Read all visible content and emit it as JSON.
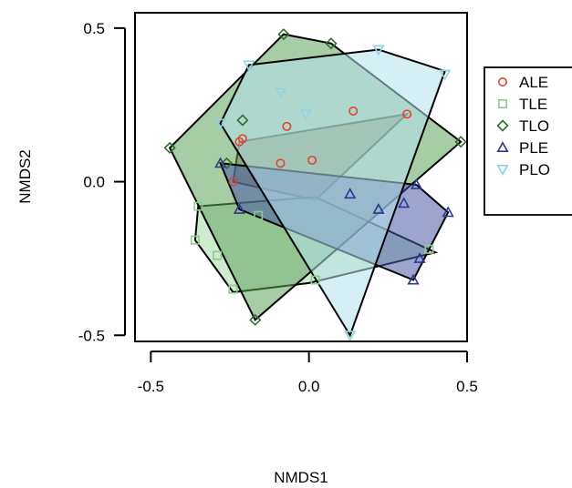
{
  "chart_data": {
    "type": "scatter",
    "title": "",
    "xlabel": "NMDS1",
    "ylabel": "NMDS2",
    "xlim": [
      -0.55,
      0.5
    ],
    "ylim": [
      -0.52,
      0.55
    ],
    "xticks": [
      -0.5,
      0.0,
      0.5
    ],
    "xtick_labels": [
      "-0.5",
      "0.0",
      "0.5"
    ],
    "yticks": [
      -0.5,
      0.0,
      0.5
    ],
    "ytick_labels": [
      "-0.5",
      "0.0",
      "0.5"
    ],
    "grid": false,
    "legend_position": "right",
    "series": [
      {
        "name": "ALE",
        "marker": "circle",
        "color": "#e0442e",
        "fill": "#a05a4a",
        "points": [
          [
            -0.21,
            0.14
          ],
          [
            -0.22,
            0.13
          ],
          [
            -0.07,
            0.18
          ],
          [
            0.14,
            0.23
          ],
          [
            0.31,
            0.22
          ],
          [
            -0.09,
            0.06
          ],
          [
            0.01,
            0.07
          ],
          [
            -0.24,
            0.0
          ]
        ],
        "hull": [
          [
            -0.22,
            0.13
          ],
          [
            0.31,
            0.22
          ],
          [
            0.02,
            -0.06
          ],
          [
            -0.24,
            0.0
          ]
        ]
      },
      {
        "name": "TLE",
        "marker": "square",
        "color": "#8ccc8c",
        "fill": "#a8dba8",
        "points": [
          [
            -0.35,
            -0.08
          ],
          [
            -0.36,
            -0.19
          ],
          [
            -0.29,
            -0.24
          ],
          [
            -0.21,
            -0.19
          ],
          [
            -0.16,
            -0.11
          ],
          [
            -0.06,
            -0.26
          ],
          [
            -0.24,
            -0.35
          ],
          [
            0.02,
            -0.32
          ],
          [
            0.38,
            -0.22
          ]
        ],
        "hull": [
          [
            -0.35,
            -0.08
          ],
          [
            0.02,
            -0.05
          ],
          [
            0.4,
            -0.23
          ],
          [
            0.0,
            -0.33
          ],
          [
            -0.24,
            -0.36
          ],
          [
            -0.36,
            -0.19
          ]
        ]
      },
      {
        "name": "TLO",
        "marker": "diamond",
        "color": "#2e6e2e",
        "fill": "#5fa45f",
        "points": [
          [
            -0.44,
            0.11
          ],
          [
            -0.08,
            0.48
          ],
          [
            0.07,
            0.45
          ],
          [
            0.48,
            0.13
          ],
          [
            -0.21,
            0.2
          ],
          [
            -0.17,
            -0.45
          ],
          [
            -0.26,
            0.06
          ]
        ],
        "hull": [
          [
            -0.44,
            0.11
          ],
          [
            -0.08,
            0.48
          ],
          [
            0.07,
            0.45
          ],
          [
            0.48,
            0.13
          ],
          [
            -0.17,
            -0.45
          ]
        ]
      },
      {
        "name": "PLE",
        "marker": "triangle",
        "color": "#2a3a8c",
        "fill": "#4a5aa8",
        "points": [
          [
            -0.28,
            0.06
          ],
          [
            -0.22,
            -0.09
          ],
          [
            0.13,
            -0.04
          ],
          [
            0.22,
            -0.09
          ],
          [
            0.3,
            -0.07
          ],
          [
            0.34,
            -0.01
          ],
          [
            0.44,
            -0.1
          ],
          [
            0.35,
            -0.25
          ],
          [
            0.33,
            -0.32
          ]
        ],
        "hull": [
          [
            -0.28,
            0.06
          ],
          [
            0.34,
            -0.01
          ],
          [
            0.44,
            -0.1
          ],
          [
            0.33,
            -0.32
          ],
          [
            -0.22,
            -0.09
          ]
        ]
      },
      {
        "name": "PLO",
        "marker": "triangle-down",
        "color": "#8cd4e4",
        "fill": "#b4e2ec",
        "points": [
          [
            -0.19,
            0.38
          ],
          [
            0.22,
            0.43
          ],
          [
            0.43,
            0.35
          ],
          [
            -0.09,
            0.29
          ],
          [
            -0.01,
            0.22
          ],
          [
            -0.28,
            0.19
          ],
          [
            0.13,
            -0.5
          ]
        ],
        "hull": [
          [
            -0.19,
            0.38
          ],
          [
            0.22,
            0.43
          ],
          [
            0.43,
            0.36
          ],
          [
            0.13,
            -0.5
          ],
          [
            -0.28,
            0.19
          ]
        ]
      }
    ]
  }
}
